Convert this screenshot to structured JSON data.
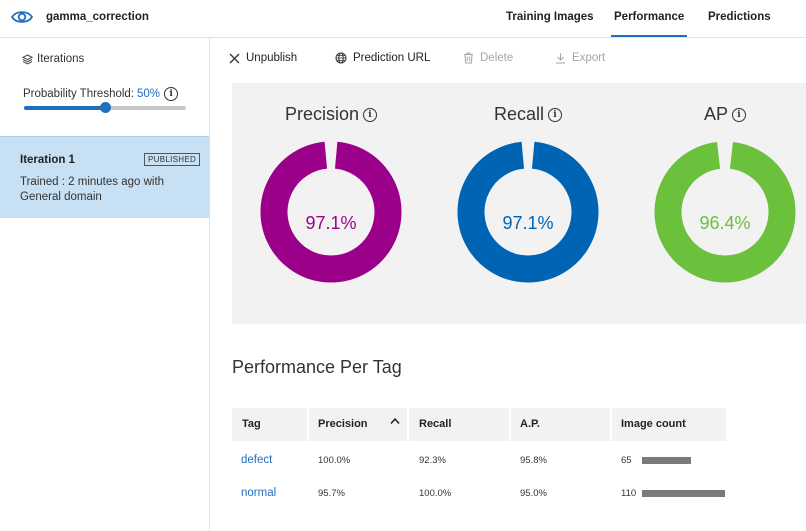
{
  "app": {
    "project_name": "gamma_correction",
    "icon": "eye-icon",
    "nav": [
      {
        "label": "Training Images",
        "active": false
      },
      {
        "label": "Performance",
        "active": true
      },
      {
        "label": "Predictions",
        "active": false
      }
    ]
  },
  "sidebar": {
    "iterations_label": "Iterations",
    "threshold_label": "Probability Threshold:",
    "threshold_value": "50%",
    "threshold_fraction": 0.5,
    "iteration": {
      "name": "Iteration 1",
      "badge": "PUBLISHED",
      "trained": "Trained : 2 minutes ago with General domain"
    }
  },
  "toolbar": {
    "unpublish": "Unpublish",
    "prediction_url": "Prediction URL",
    "delete": "Delete",
    "export": "Export"
  },
  "metrics": [
    {
      "label": "Precision",
      "value": "97.1%",
      "fraction": 0.971,
      "color": "#9b008b"
    },
    {
      "label": "Recall",
      "value": "97.1%",
      "fraction": 0.971,
      "color": "#0064b4"
    },
    {
      "label": "AP",
      "value": "96.4%",
      "fraction": 0.964,
      "color": "#6bc13b"
    }
  ],
  "per_tag": {
    "title": "Performance Per Tag",
    "columns": [
      "Tag",
      "Precision",
      "Recall",
      "A.P.",
      "Image count"
    ],
    "rows": [
      {
        "tag": "defect",
        "precision": "100.0%",
        "recall": "92.3%",
        "ap": "95.8%",
        "count": "65",
        "count_value": 65
      },
      {
        "tag": "normal",
        "precision": "95.7%",
        "recall": "100.0%",
        "ap": "95.0%",
        "count": "110",
        "count_value": 110
      }
    ],
    "max_count": 110
  },
  "colors": {
    "accent": "#1f6fc0",
    "selected_bg": "#c7e0f4",
    "panel_bg": "#f2f2f2"
  }
}
